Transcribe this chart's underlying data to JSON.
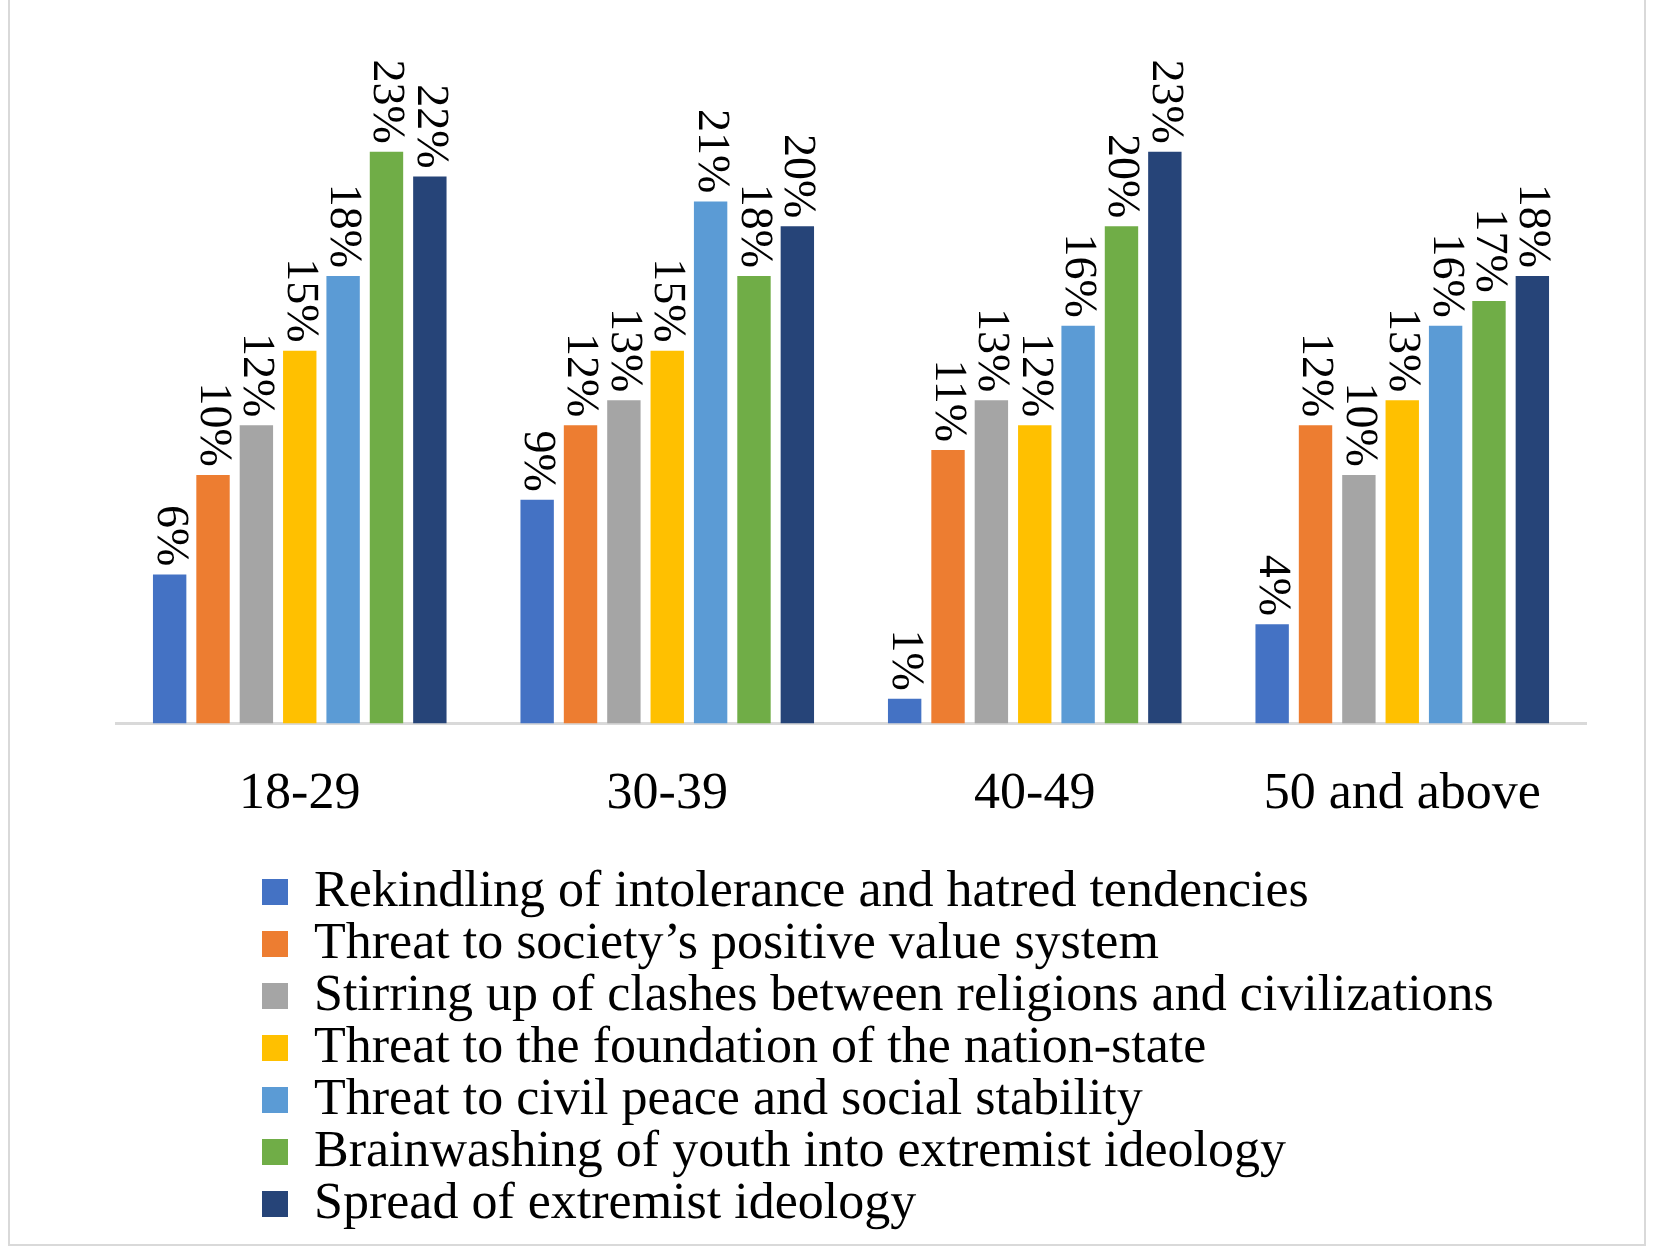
{
  "chart_data": {
    "type": "bar",
    "categories": [
      "18-29",
      "30-39",
      "40-49",
      "50 and above"
    ],
    "series": [
      {
        "name": "Rekindling of intolerance and hatred tendencies",
        "color": "#4472c4",
        "values": [
          6,
          9,
          1,
          4
        ],
        "value_labels": [
          "6%",
          "9%",
          "1%",
          "4%"
        ]
      },
      {
        "name": "Threat to society’s positive value system",
        "color": "#ed7d31",
        "values": [
          10,
          12,
          11,
          12
        ],
        "value_labels": [
          "10%",
          "12%",
          "11%",
          "12%"
        ]
      },
      {
        "name": "Stirring up of clashes between religions and civilizations",
        "color": "#a5a5a5",
        "values": [
          12,
          13,
          13,
          10
        ],
        "value_labels": [
          "12%",
          "13%",
          "13%",
          "10%"
        ]
      },
      {
        "name": "Threat to the foundation of the nation-state",
        "color": "#ffc000",
        "values": [
          15,
          15,
          12,
          13
        ],
        "value_labels": [
          "15%",
          "15%",
          "12%",
          "13%"
        ]
      },
      {
        "name": "Threat to civil peace and social stability",
        "color": "#5b9bd5",
        "values": [
          18,
          21,
          16,
          16
        ],
        "value_labels": [
          "18%",
          "21%",
          "16%",
          "16%"
        ]
      },
      {
        "name": "Brainwashing of youth into extremist ideology",
        "color": "#70ad47",
        "values": [
          23,
          18,
          20,
          17
        ],
        "value_labels": [
          "23%",
          "18%",
          "20%",
          "17%"
        ]
      },
      {
        "name": "Spread of extremist ideology",
        "color": "#264478",
        "values": [
          22,
          20,
          23,
          18
        ],
        "value_labels": [
          "22%",
          "20%",
          "23%",
          "18%"
        ]
      }
    ],
    "legend": "bottom",
    "tick_labels": "x"
  }
}
